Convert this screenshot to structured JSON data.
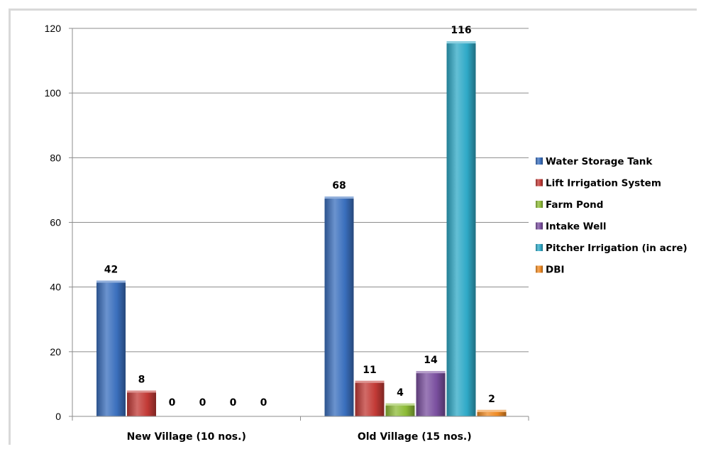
{
  "chart_data": {
    "type": "bar",
    "categories": [
      "New Village (10 nos.)",
      "Old Village (15 nos.)"
    ],
    "series": [
      {
        "name": "Water Storage Tank",
        "values": [
          42,
          68
        ],
        "color": "#3a6fbd"
      },
      {
        "name": "Lift Irrigation System",
        "values": [
          8,
          11
        ],
        "color": "#c23a36"
      },
      {
        "name": "Farm Pond",
        "values": [
          0,
          4
        ],
        "color": "#8dbb37"
      },
      {
        "name": "Intake Well",
        "values": [
          0,
          14
        ],
        "color": "#7a4f9f"
      },
      {
        "name": "Pitcher Irrigation (in acre)",
        "values": [
          0,
          116
        ],
        "color": "#2fa9c7"
      },
      {
        "name": "DBI",
        "values": [
          0,
          2
        ],
        "color": "#ef8a23"
      }
    ],
    "ylim": [
      0,
      120
    ],
    "yticks": [
      0,
      20,
      40,
      60,
      80,
      100,
      120
    ],
    "grid": true,
    "legend_position": "right",
    "title": "",
    "xlabel": "",
    "ylabel": ""
  }
}
